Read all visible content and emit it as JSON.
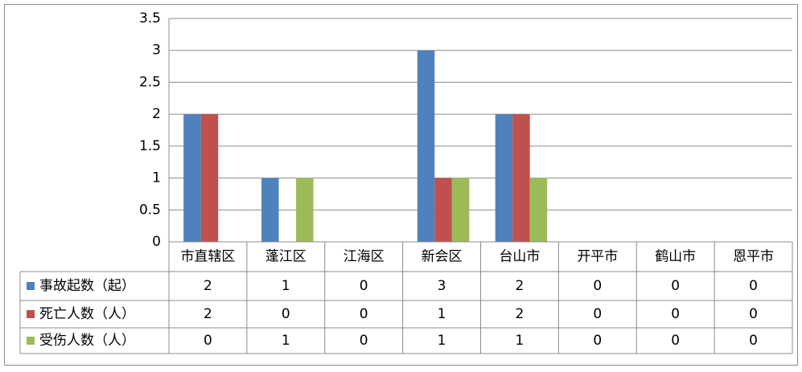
{
  "chart_data": {
    "type": "bar",
    "categories": [
      "市直辖区",
      "蓬江区",
      "江海区",
      "新会区",
      "台山市",
      "开平市",
      "鹤山市",
      "恩平市"
    ],
    "series": [
      {
        "name": "事故起数（起）",
        "color": "#4f81bd",
        "values": [
          2,
          1,
          0,
          3,
          2,
          0,
          0,
          0
        ]
      },
      {
        "name": "死亡人数（人）",
        "color": "#c0504d",
        "values": [
          2,
          0,
          0,
          1,
          2,
          0,
          0,
          0
        ]
      },
      {
        "name": "受伤人数（人）",
        "color": "#9bbb59",
        "values": [
          0,
          1,
          0,
          1,
          1,
          0,
          0,
          0
        ]
      }
    ],
    "ylim": [
      0,
      3.5
    ],
    "yticks": [
      0,
      0.5,
      1,
      1.5,
      2,
      2.5,
      3,
      3.5
    ],
    "grid": true,
    "data_table": true
  }
}
